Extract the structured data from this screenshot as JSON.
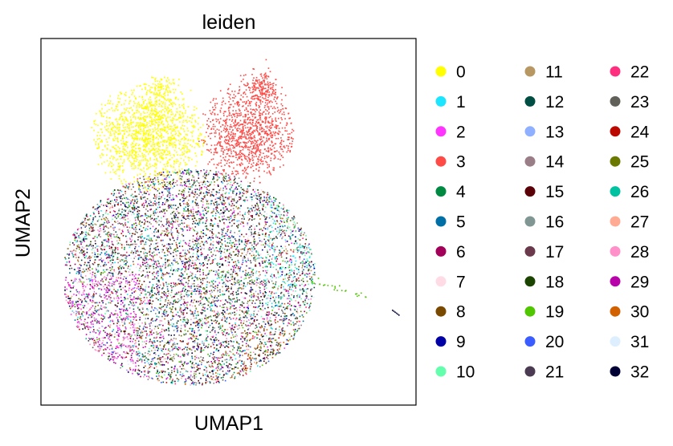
{
  "chart_data": {
    "type": "scatter",
    "title": "leiden",
    "xlabel": "UMAP1",
    "ylabel": "UMAP2",
    "xticks": false,
    "yticks": false,
    "grid": false,
    "legend_position": "right",
    "legend_columns": 3,
    "series": [
      {
        "name": "0",
        "color": "#ffff00"
      },
      {
        "name": "1",
        "color": "#1ce6ff"
      },
      {
        "name": "2",
        "color": "#ff34ff"
      },
      {
        "name": "3",
        "color": "#ff4a46"
      },
      {
        "name": "4",
        "color": "#008941"
      },
      {
        "name": "5",
        "color": "#006fa6"
      },
      {
        "name": "6",
        "color": "#a30059"
      },
      {
        "name": "7",
        "color": "#ffdbe5"
      },
      {
        "name": "8",
        "color": "#7a4900"
      },
      {
        "name": "9",
        "color": "#0000a6"
      },
      {
        "name": "10",
        "color": "#63ffac"
      },
      {
        "name": "11",
        "color": "#b79762"
      },
      {
        "name": "12",
        "color": "#004d43"
      },
      {
        "name": "13",
        "color": "#8fb0ff"
      },
      {
        "name": "14",
        "color": "#997d87"
      },
      {
        "name": "15",
        "color": "#5a0007"
      },
      {
        "name": "16",
        "color": "#809693"
      },
      {
        "name": "17",
        "color": "#6a3a4c"
      },
      {
        "name": "18",
        "color": "#1b4400"
      },
      {
        "name": "19",
        "color": "#4fc601"
      },
      {
        "name": "20",
        "color": "#3b5dff"
      },
      {
        "name": "21",
        "color": "#4a3b53"
      },
      {
        "name": "22",
        "color": "#ff2f80"
      },
      {
        "name": "23",
        "color": "#61615a"
      },
      {
        "name": "24",
        "color": "#ba0900"
      },
      {
        "name": "25",
        "color": "#6b7900"
      },
      {
        "name": "26",
        "color": "#00c2a0"
      },
      {
        "name": "27",
        "color": "#ffaa92"
      },
      {
        "name": "28",
        "color": "#ff90c9"
      },
      {
        "name": "29",
        "color": "#b903aa"
      },
      {
        "name": "30",
        "color": "#d16100"
      },
      {
        "name": "31",
        "color": "#ddefff"
      },
      {
        "name": "32",
        "color": "#000035"
      }
    ]
  }
}
